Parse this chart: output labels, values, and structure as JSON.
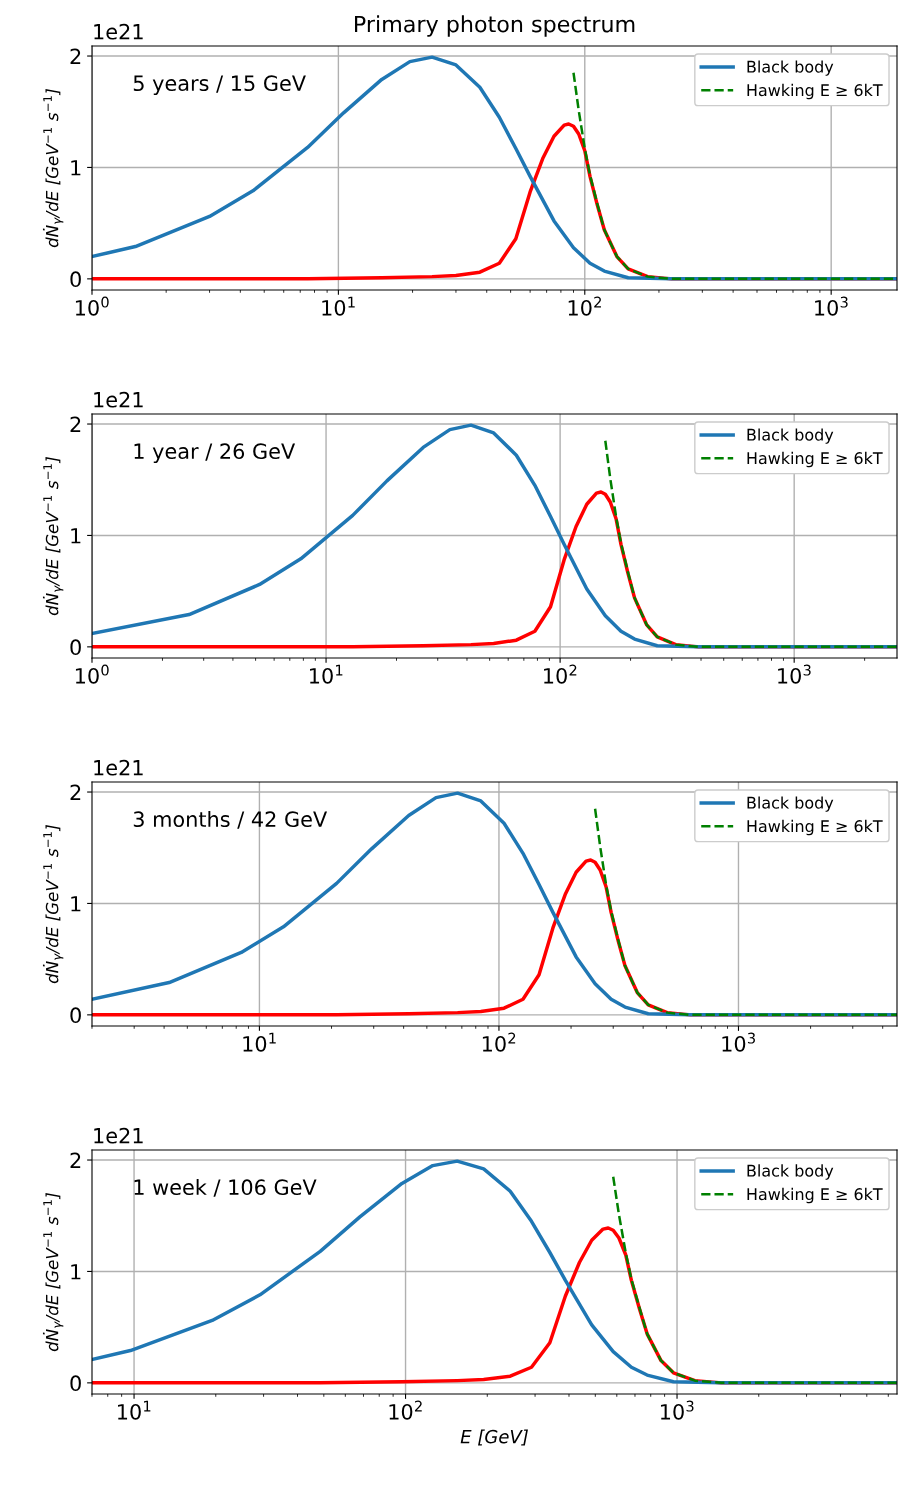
{
  "chart_data": [
    {
      "type": "line",
      "title": "Primary photon spectrum",
      "ylabel": "dṄ$_{γ}$/dE [GeV$^{−1}$ s$^{−1}$]",
      "annotations": [
        "5 years / 15 GeV",
        "1e21"
      ],
      "log": "x",
      "grid": true,
      "legend": "top right",
      "xlim": [
        1,
        1850
      ],
      "xticks": [
        {
          "value": 1,
          "label": "10$^{0}$"
        },
        {
          "value": 10,
          "label": "10$^{1}$"
        },
        {
          "value": 100,
          "label": "10$^{2}$"
        },
        {
          "value": 1000,
          "label": "10$^{3}$"
        }
      ],
      "ylim": [
        -0.1,
        2.09
      ],
      "yticks": [
        0,
        1,
        2
      ],
      "series": [
        {
          "color": "#ff0000",
          "line_style": "solid",
          "x": [
            1,
            7.5,
            15,
            24,
            30,
            37.5,
            45,
            52.5,
            60,
            67.5,
            75,
            82.5,
            86,
            90,
            94.5,
            100,
            105,
            112.5,
            120,
            135,
            150,
            180,
            225,
            1850
          ],
          "values": [
            0,
            0,
            0.01,
            0.02,
            0.03,
            0.06,
            0.14,
            0.36,
            0.78,
            1.08,
            1.28,
            1.38,
            1.39,
            1.37,
            1.3,
            1.15,
            0.92,
            0.66,
            0.44,
            0.2,
            0.09,
            0.02,
            0,
            0
          ]
        },
        {
          "name": "Black body",
          "color": "#1f77b4",
          "line_style": "solid",
          "x": [
            1,
            1.5,
            3,
            4.5,
            7.5,
            10.5,
            15,
            19.5,
            24,
            30,
            37.5,
            45,
            52.5,
            60,
            75,
            90,
            105,
            120,
            150,
            225,
            1850
          ],
          "values": [
            0.2,
            0.29,
            0.56,
            0.79,
            1.18,
            1.49,
            1.79,
            1.95,
            1.99,
            1.92,
            1.72,
            1.45,
            1.17,
            0.92,
            0.52,
            0.28,
            0.14,
            0.07,
            0.01,
            0,
            0
          ]
        },
        {
          "name": "Hawking E ≥ 6kT",
          "color": "#008000",
          "line_style": "dashed",
          "x": [
            90,
            94.5,
            100,
            105,
            112.5,
            120,
            135,
            150,
            180,
            225,
            1850
          ],
          "values": [
            1.85,
            1.51,
            1.17,
            0.93,
            0.67,
            0.44,
            0.2,
            0.09,
            0.02,
            0,
            0
          ]
        }
      ]
    },
    {
      "type": "line",
      "ylabel": "dṄ$_{γ}$/dE [GeV$^{−1}$ s$^{−1}$]",
      "annotations": [
        "1 year / 26 GeV",
        "1e21"
      ],
      "log": "x",
      "grid": true,
      "legend": "top right",
      "xlim": [
        1,
        2750
      ],
      "xticks": [
        {
          "value": 1,
          "label": "10$^{0}$"
        },
        {
          "value": 10,
          "label": "10$^{1}$"
        },
        {
          "value": 100,
          "label": "10$^{2}$"
        },
        {
          "value": 1000,
          "label": "10$^{3}$"
        }
      ],
      "ylim": [
        -0.1,
        2.09
      ],
      "yticks": [
        0,
        1,
        2
      ],
      "series": [
        {
          "color": "#ff0000",
          "line_style": "solid",
          "x": [
            1,
            13,
            26,
            41.6,
            52,
            65,
            78,
            91,
            104,
            117,
            130,
            143,
            149.5,
            156,
            163.8,
            173.4,
            182,
            195,
            208,
            234,
            260,
            312,
            390,
            2750
          ],
          "values": [
            0,
            0,
            0.01,
            0.02,
            0.03,
            0.06,
            0.14,
            0.36,
            0.78,
            1.08,
            1.28,
            1.38,
            1.39,
            1.37,
            1.3,
            1.15,
            0.92,
            0.66,
            0.44,
            0.2,
            0.09,
            0.02,
            0,
            0
          ]
        },
        {
          "name": "Black body",
          "color": "#1f77b4",
          "line_style": "solid",
          "x": [
            1,
            2.6,
            5.2,
            7.8,
            13,
            18.2,
            26,
            33.8,
            41.6,
            52,
            65,
            78,
            91,
            104,
            130,
            156,
            182,
            208,
            260,
            390,
            2750
          ],
          "values": [
            0.12,
            0.29,
            0.56,
            0.79,
            1.18,
            1.49,
            1.79,
            1.95,
            1.99,
            1.92,
            1.72,
            1.45,
            1.17,
            0.92,
            0.52,
            0.28,
            0.14,
            0.07,
            0.01,
            0,
            0
          ]
        },
        {
          "name": "Hawking E ≥ 6kT",
          "color": "#008000",
          "line_style": "dashed",
          "x": [
            156,
            163.8,
            173.4,
            182,
            195,
            208,
            234,
            260,
            312,
            390,
            2750
          ],
          "values": [
            1.85,
            1.51,
            1.17,
            0.93,
            0.67,
            0.44,
            0.2,
            0.09,
            0.02,
            0,
            0
          ]
        }
      ]
    },
    {
      "type": "line",
      "ylabel": "dṄ$_{γ}$/dE [GeV$^{−1}$ s$^{−1}$]",
      "annotations": [
        "3 months / 42 GeV",
        "1e21"
      ],
      "log": "x",
      "grid": true,
      "legend": "top right",
      "xlim": [
        2,
        4590
      ],
      "xticks": [
        {
          "value": 10,
          "label": "10$^{1}$"
        },
        {
          "value": 100,
          "label": "10$^{2}$"
        },
        {
          "value": 1000,
          "label": "10$^{3}$"
        }
      ],
      "ylim": [
        -0.1,
        2.09
      ],
      "yticks": [
        0,
        1,
        2
      ],
      "series": [
        {
          "color": "#ff0000",
          "line_style": "solid",
          "x": [
            2,
            21,
            42,
            67.2,
            84,
            105,
            126,
            147,
            168,
            189,
            210,
            231,
            241.5,
            252,
            264.6,
            280,
            294,
            315,
            336,
            378,
            420,
            504,
            630,
            4590
          ],
          "values": [
            0,
            0,
            0.01,
            0.02,
            0.03,
            0.06,
            0.14,
            0.36,
            0.78,
            1.08,
            1.28,
            1.38,
            1.39,
            1.37,
            1.3,
            1.15,
            0.92,
            0.66,
            0.44,
            0.2,
            0.09,
            0.02,
            0,
            0
          ]
        },
        {
          "name": "Black body",
          "color": "#1f77b4",
          "line_style": "solid",
          "x": [
            2,
            4.2,
            8.4,
            12.6,
            21,
            29.4,
            42,
            54.6,
            67.2,
            84,
            105,
            126,
            147,
            168,
            210,
            252,
            294,
            336,
            420,
            630,
            4590
          ],
          "values": [
            0.14,
            0.29,
            0.56,
            0.79,
            1.18,
            1.49,
            1.79,
            1.95,
            1.99,
            1.92,
            1.72,
            1.45,
            1.17,
            0.92,
            0.52,
            0.28,
            0.14,
            0.07,
            0.01,
            0,
            0
          ]
        },
        {
          "name": "Hawking E ≥ 6kT",
          "color": "#008000",
          "line_style": "dashed",
          "x": [
            252,
            264.6,
            280,
            294,
            315,
            336,
            378,
            420,
            504,
            630,
            4590
          ],
          "values": [
            1.85,
            1.51,
            1.17,
            0.93,
            0.67,
            0.44,
            0.2,
            0.09,
            0.02,
            0,
            0
          ]
        }
      ]
    },
    {
      "type": "line",
      "xlabel": "E [GeV]",
      "ylabel": "dṄ$_{γ}$/dE [GeV$^{−1}$ s$^{−1}$]",
      "annotations": [
        "1 week / 106 GeV",
        "1e21"
      ],
      "log": "x",
      "grid": true,
      "legend": "top right",
      "xlim": [
        7,
        6460
      ],
      "xticks": [
        {
          "value": 10,
          "label": "10$^{1}$"
        },
        {
          "value": 100,
          "label": "10$^{2}$"
        },
        {
          "value": 1000,
          "label": "10$^{3}$"
        }
      ],
      "ylim": [
        -0.1,
        2.09
      ],
      "yticks": [
        0,
        1,
        2
      ],
      "series": [
        {
          "color": "#ff0000",
          "line_style": "solid",
          "x": [
            7,
            48.5,
            97,
            155,
            194,
            243,
            291,
            340,
            388,
            437,
            485,
            534,
            558,
            582,
            611,
            647,
            679,
            728,
            776,
            873,
            970,
            1164,
            1455,
            6460
          ],
          "values": [
            0,
            0,
            0.01,
            0.02,
            0.03,
            0.06,
            0.14,
            0.36,
            0.78,
            1.08,
            1.28,
            1.38,
            1.39,
            1.37,
            1.3,
            1.15,
            0.92,
            0.66,
            0.44,
            0.2,
            0.09,
            0.02,
            0,
            0
          ]
        },
        {
          "name": "Black body",
          "color": "#1f77b4",
          "line_style": "solid",
          "x": [
            7,
            9.7,
            19.4,
            29.1,
            48.5,
            67.9,
            97,
            126,
            155,
            194,
            243,
            291,
            340,
            388,
            485,
            582,
            679,
            776,
            970,
            1455,
            6460
          ],
          "values": [
            0.21,
            0.29,
            0.56,
            0.79,
            1.18,
            1.49,
            1.79,
            1.95,
            1.99,
            1.92,
            1.72,
            1.45,
            1.17,
            0.92,
            0.52,
            0.28,
            0.14,
            0.07,
            0.01,
            0,
            0
          ]
        },
        {
          "name": "Hawking E ≥ 6kT",
          "color": "#008000",
          "line_style": "dashed",
          "x": [
            582,
            611,
            647,
            679,
            728,
            776,
            873,
            970,
            1164,
            1455,
            6460
          ],
          "values": [
            1.85,
            1.51,
            1.17,
            0.93,
            0.67,
            0.44,
            0.2,
            0.09,
            0.02,
            0,
            0
          ]
        }
      ]
    }
  ]
}
